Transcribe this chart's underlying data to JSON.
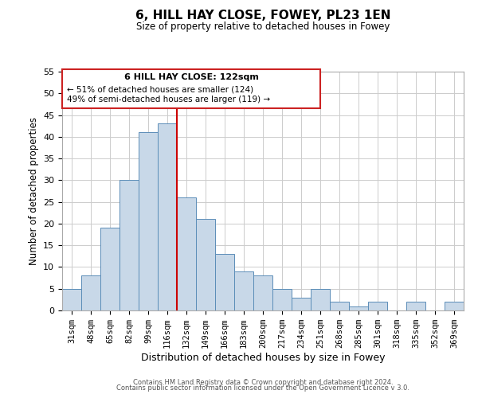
{
  "title": "6, HILL HAY CLOSE, FOWEY, PL23 1EN",
  "subtitle": "Size of property relative to detached houses in Fowey",
  "xlabel": "Distribution of detached houses by size in Fowey",
  "ylabel": "Number of detached properties",
  "bin_labels": [
    "31sqm",
    "48sqm",
    "65sqm",
    "82sqm",
    "99sqm",
    "116sqm",
    "132sqm",
    "149sqm",
    "166sqm",
    "183sqm",
    "200sqm",
    "217sqm",
    "234sqm",
    "251sqm",
    "268sqm",
    "285sqm",
    "301sqm",
    "318sqm",
    "335sqm",
    "352sqm",
    "369sqm"
  ],
  "bar_heights": [
    5,
    8,
    19,
    30,
    41,
    43,
    26,
    21,
    13,
    9,
    8,
    5,
    3,
    5,
    2,
    1,
    2,
    0,
    2,
    0,
    2
  ],
  "bar_color": "#c8d8e8",
  "bar_edge_color": "#5b8db8",
  "vline_x": 6.0,
  "vline_color": "#cc0000",
  "ylim": [
    0,
    55
  ],
  "yticks": [
    0,
    5,
    10,
    15,
    20,
    25,
    30,
    35,
    40,
    45,
    50,
    55
  ],
  "annotation_title": "6 HILL HAY CLOSE: 122sqm",
  "annotation_line1": "← 51% of detached houses are smaller (124)",
  "annotation_line2": "49% of semi-detached houses are larger (119) →",
  "footer1": "Contains HM Land Registry data © Crown copyright and database right 2024.",
  "footer2": "Contains public sector information licensed under the Open Government Licence v 3.0.",
  "background_color": "#ffffff",
  "grid_color": "#cccccc"
}
